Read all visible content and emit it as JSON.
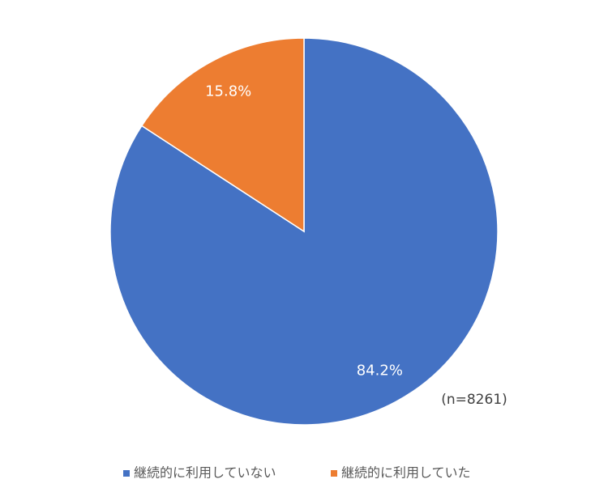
{
  "chart_data": {
    "type": "pie",
    "categories": [
      "継続的に利用していない",
      "継続的に利用していた"
    ],
    "values": [
      84.2,
      15.8
    ],
    "value_labels": [
      "84.2%",
      "15.8%"
    ],
    "colors": [
      "#4472c4",
      "#ed7d31"
    ],
    "annotation": "(n=8261)",
    "legend": "bottom"
  }
}
